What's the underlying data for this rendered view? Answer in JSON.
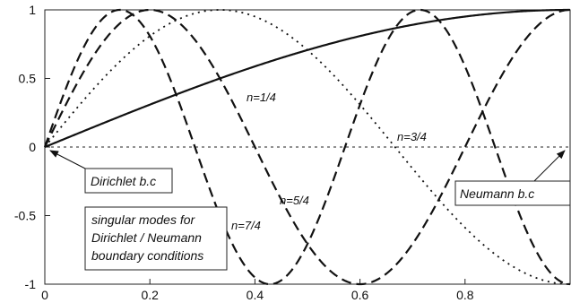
{
  "chart_data": {
    "type": "line",
    "title": "",
    "xlabel": "",
    "ylabel": "",
    "xlim": [
      0,
      1
    ],
    "ylim": [
      -1,
      1
    ],
    "x_ticks": [
      "0",
      "0.2",
      "0.4",
      "0.6",
      "0.8"
    ],
    "y_ticks": [
      "1",
      "0.5",
      "0",
      "-0.5",
      "-1"
    ],
    "function": "sin(2*pi*n*x)",
    "series": [
      {
        "n": 0.25,
        "label": "n=1/4",
        "style": "solid"
      },
      {
        "n": 0.75,
        "label": "n=3/4",
        "style": "dotted"
      },
      {
        "n": 1.25,
        "label": "n=5/4",
        "style": "dashed"
      },
      {
        "n": 1.75,
        "label": "n=7/4",
        "style": "dashed"
      }
    ],
    "annotations": {
      "dirichlet": "Dirichlet b.c",
      "neumann": "Neumann b.c",
      "caption": [
        "singular modes for",
        "Dirichlet / Neumann",
        "boundary conditions"
      ]
    }
  }
}
